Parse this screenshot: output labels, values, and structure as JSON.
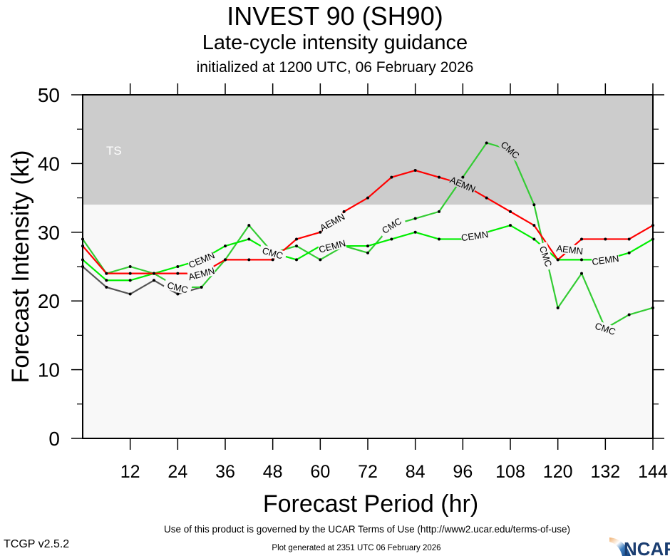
{
  "header": {
    "title": "INVEST 90 (SH90)",
    "subtitle": "Late-cycle intensity guidance",
    "init": "initialized at 1200 UTC, 06 February 2026"
  },
  "footer": {
    "terms": "Use of this product is governed by the UCAR Terms of Use (http://www2.ucar.edu/terms-of-use)",
    "generated": "Plot generated at 2351 UTC   06 February 2026",
    "version": "TCGP v2.5.2",
    "logo_text": "NCAR"
  },
  "chart_data": {
    "type": "line",
    "title": "INVEST 90 (SH90)",
    "xlabel": "Forecast Period (hr)",
    "ylabel": "Forecast Intensity (kt)",
    "xlim": [
      0,
      144
    ],
    "ylim": [
      0,
      50
    ],
    "xticks": [
      12,
      24,
      36,
      48,
      60,
      72,
      84,
      96,
      108,
      120,
      132,
      144
    ],
    "yticks": [
      0,
      10,
      20,
      30,
      40,
      50
    ],
    "bands": [
      {
        "label": "TS",
        "from": 34,
        "to": 50,
        "color": "#cccccc"
      },
      {
        "label": "",
        "from": 0,
        "to": 34,
        "color": "#f8f8f8"
      }
    ],
    "grid": false,
    "x": [
      0,
      6,
      12,
      18,
      24,
      30,
      36,
      42,
      48,
      54,
      60,
      66,
      72,
      78,
      84,
      90,
      96,
      102,
      108,
      114,
      120,
      126,
      132,
      138,
      144
    ],
    "series": [
      {
        "name": "OFCL/GRAY",
        "label": "",
        "color": "#555555",
        "values": [
          25,
          22,
          21,
          23,
          21,
          22,
          null,
          null,
          null,
          null,
          null,
          null,
          null,
          null,
          null,
          null,
          null,
          null,
          null,
          null,
          null,
          null,
          null,
          null,
          null
        ],
        "label_at": []
      },
      {
        "name": "CMC",
        "label": "CMC",
        "color": "#33cc33",
        "values": [
          29,
          24,
          25,
          24,
          22,
          22,
          26,
          31,
          27,
          28,
          26,
          28,
          27,
          31,
          32,
          33,
          38,
          43,
          42,
          34,
          19,
          24,
          16,
          18,
          19
        ],
        "label_at": [
          24,
          48,
          78,
          108,
          117,
          132
        ]
      },
      {
        "name": "CEMN",
        "label": "CEMN",
        "color": "#00ee00",
        "values": [
          26,
          23,
          23,
          24,
          25,
          26,
          28,
          29,
          27,
          26,
          28,
          28,
          28,
          29,
          30,
          29,
          29,
          30,
          31,
          29,
          26,
          26,
          26,
          27,
          29
        ],
        "label_at": [
          30,
          63,
          99,
          132
        ]
      },
      {
        "name": "AEMN",
        "label": "AEMN",
        "color": "#ff0000",
        "values": [
          28,
          24,
          24,
          24,
          24,
          24,
          26,
          26,
          26,
          29,
          30,
          33,
          35,
          38,
          39,
          38,
          37,
          35,
          33,
          31,
          26,
          29,
          29,
          29,
          31
        ],
        "label_at": [
          30,
          63,
          96,
          123
        ]
      }
    ]
  }
}
